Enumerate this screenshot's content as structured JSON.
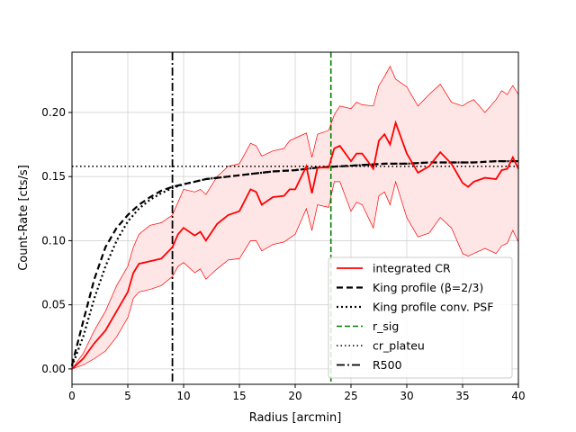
{
  "chart_data": {
    "type": "line",
    "xlabel": "Radius [arcmin]",
    "ylabel": "Count-Rate [cts/s]",
    "xlim": [
      0,
      40
    ],
    "ylim": [
      -0.012,
      0.247
    ],
    "xticks": [
      0,
      5,
      10,
      15,
      20,
      25,
      30,
      35,
      40
    ],
    "xtick_labels": [
      "0",
      "5",
      "10",
      "15",
      "20",
      "25",
      "30",
      "35",
      "40"
    ],
    "yticks": [
      0.0,
      0.05,
      0.1,
      0.15,
      0.2
    ],
    "ytick_labels": [
      "0.00",
      "0.05",
      "0.10",
      "0.15",
      "0.20"
    ],
    "grid": true,
    "legend_position": "lower-right",
    "colors": {
      "cr": "#ff0000",
      "band_fill": "#ffe6e6",
      "king": "#000000",
      "r_sig": "#008000"
    },
    "integrated_cr": {
      "name": "integrated CR",
      "x": [
        0,
        1,
        2,
        3,
        4,
        5,
        5.5,
        6,
        7,
        8,
        9,
        9.5,
        10,
        11,
        11.5,
        12,
        13,
        14,
        15,
        16,
        16.5,
        17,
        18,
        19,
        19.5,
        20,
        21,
        21.5,
        22,
        23,
        23.5,
        24,
        25,
        25.5,
        26,
        27,
        27.5,
        28,
        28.5,
        29,
        30,
        31,
        32,
        33,
        34,
        35,
        35.5,
        36,
        37,
        38,
        38.5,
        39,
        39.5,
        40
      ],
      "y": [
        0.0,
        0.008,
        0.02,
        0.03,
        0.045,
        0.06,
        0.075,
        0.082,
        0.084,
        0.086,
        0.095,
        0.105,
        0.11,
        0.104,
        0.107,
        0.1,
        0.113,
        0.12,
        0.123,
        0.14,
        0.138,
        0.128,
        0.134,
        0.135,
        0.14,
        0.14,
        0.158,
        0.137,
        0.157,
        0.157,
        0.172,
        0.174,
        0.162,
        0.168,
        0.168,
        0.156,
        0.178,
        0.183,
        0.175,
        0.192,
        0.168,
        0.153,
        0.158,
        0.169,
        0.16,
        0.145,
        0.142,
        0.146,
        0.149,
        0.148,
        0.155,
        0.156,
        0.165,
        0.156
      ]
    },
    "cr_upper": [
      0.0,
      0.012,
      0.03,
      0.045,
      0.065,
      0.08,
      0.095,
      0.105,
      0.112,
      0.114,
      0.12,
      0.13,
      0.14,
      0.138,
      0.14,
      0.136,
      0.15,
      0.158,
      0.16,
      0.176,
      0.174,
      0.166,
      0.17,
      0.172,
      0.178,
      0.18,
      0.184,
      0.165,
      0.183,
      0.186,
      0.198,
      0.205,
      0.203,
      0.208,
      0.206,
      0.205,
      0.221,
      0.228,
      0.236,
      0.226,
      0.22,
      0.205,
      0.214,
      0.222,
      0.208,
      0.205,
      0.208,
      0.21,
      0.2,
      0.21,
      0.217,
      0.214,
      0.221,
      0.214
    ],
    "cr_lower": [
      0.0,
      0.003,
      0.008,
      0.014,
      0.025,
      0.04,
      0.055,
      0.06,
      0.062,
      0.065,
      0.072,
      0.08,
      0.083,
      0.075,
      0.078,
      0.07,
      0.078,
      0.085,
      0.086,
      0.1,
      0.1,
      0.092,
      0.097,
      0.099,
      0.102,
      0.105,
      0.125,
      0.108,
      0.128,
      0.126,
      0.146,
      0.146,
      0.123,
      0.13,
      0.128,
      0.11,
      0.135,
      0.138,
      0.128,
      0.146,
      0.118,
      0.103,
      0.106,
      0.118,
      0.11,
      0.09,
      0.088,
      0.09,
      0.094,
      0.09,
      0.096,
      0.098,
      0.108,
      0.099
    ],
    "king_profile": {
      "name": "King profile (β=2/3)",
      "x": [
        0,
        1,
        2,
        3,
        4,
        5,
        6,
        7,
        8,
        9,
        10,
        11,
        12,
        13,
        14,
        15,
        16,
        18,
        20,
        22,
        24,
        26,
        28,
        30,
        32,
        34,
        36,
        38,
        40
      ],
      "y": [
        0.003,
        0.037,
        0.07,
        0.095,
        0.11,
        0.12,
        0.128,
        0.134,
        0.139,
        0.142,
        0.144,
        0.146,
        0.148,
        0.149,
        0.15,
        0.151,
        0.152,
        0.154,
        0.155,
        0.157,
        0.158,
        0.159,
        0.16,
        0.16,
        0.161,
        0.161,
        0.161,
        0.162,
        0.162
      ]
    },
    "king_psf": {
      "name": "King profile conv. PSF",
      "x": [
        0,
        1,
        2,
        3,
        4,
        5,
        6,
        7,
        8,
        9,
        10,
        11,
        12,
        13,
        14,
        15,
        16,
        18,
        20,
        22,
        24,
        26,
        28,
        30,
        32,
        34,
        36,
        38,
        40
      ],
      "y": [
        0.002,
        0.025,
        0.055,
        0.08,
        0.1,
        0.115,
        0.125,
        0.132,
        0.137,
        0.141,
        0.144,
        0.146,
        0.148,
        0.149,
        0.15,
        0.151,
        0.152,
        0.154,
        0.155,
        0.157,
        0.158,
        0.159,
        0.16,
        0.16,
        0.161,
        0.161,
        0.161,
        0.162,
        0.162
      ]
    },
    "r_sig": {
      "name": "r_sig",
      "x": 23.2
    },
    "cr_plateu": {
      "name": "cr_plateu",
      "y": 0.158
    },
    "r500": {
      "name": "R500",
      "x": 9.0
    },
    "legend": [
      "integrated CR",
      "King profile (β=2/3)",
      "King profile conv. PSF",
      "r_sig",
      "cr_plateu",
      "R500"
    ]
  }
}
